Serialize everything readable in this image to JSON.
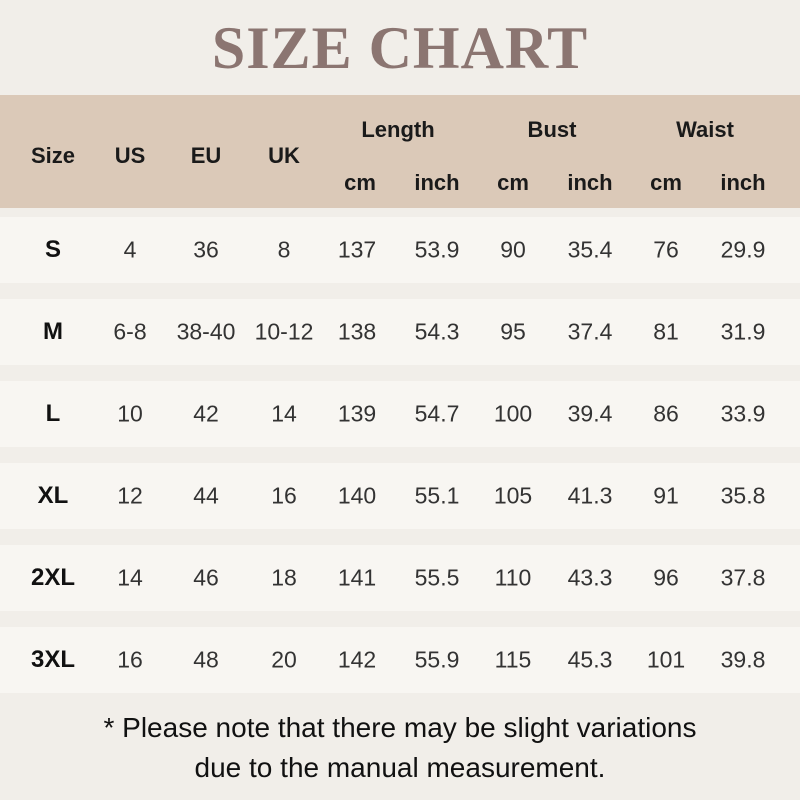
{
  "title": "SIZE CHART",
  "headers": {
    "size": "Size",
    "us": "US",
    "eu": "EU",
    "uk": "UK",
    "length": "Length",
    "bust": "Bust",
    "waist": "Waist",
    "cm": "cm",
    "inch": "inch"
  },
  "rows": [
    [
      "S",
      "4",
      "36",
      "8",
      "137",
      "53.9",
      "90",
      "35.4",
      "76",
      "29.9"
    ],
    [
      "M",
      "6-8",
      "38-40",
      "10-12",
      "138",
      "54.3",
      "95",
      "37.4",
      "81",
      "31.9"
    ],
    [
      "L",
      "10",
      "42",
      "14",
      "139",
      "54.7",
      "100",
      "39.4",
      "86",
      "33.9"
    ],
    [
      "XL",
      "12",
      "44",
      "16",
      "140",
      "55.1",
      "105",
      "41.3",
      "91",
      "35.8"
    ],
    [
      "2XL",
      "14",
      "46",
      "18",
      "141",
      "55.5",
      "110",
      "43.3",
      "96",
      "37.8"
    ],
    [
      "3XL",
      "16",
      "48",
      "20",
      "142",
      "55.9",
      "115",
      "45.3",
      "101",
      "39.8"
    ]
  ],
  "note": [
    "* Please note that there may be slight variations",
    "due to the manual measurement."
  ],
  "colors": {
    "header_bg": "#dbc9b8",
    "title": "#8b7571",
    "row_bg": "#f8f6f2",
    "page_bg": "#f1eee9"
  }
}
